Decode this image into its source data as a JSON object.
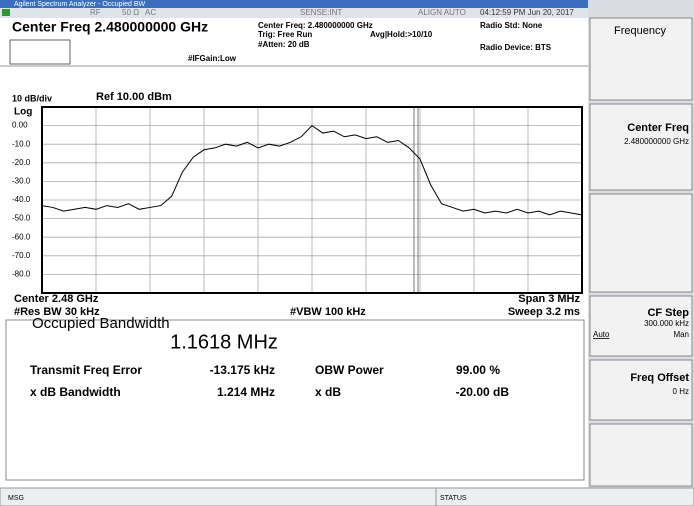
{
  "window_title": "Agilent Spectrum Analyzer - Occupied BW",
  "status_top": {
    "rf": "RF",
    "impedance": "50 Ω",
    "coupling": "AC",
    "sense": "SENSE:INT",
    "align": "ALIGN AUTO",
    "datetime": "04:12:59 PM Jun 20, 2017"
  },
  "header": {
    "center_freq": "Center Freq 2.480000000 GHz",
    "if_gain": "#IFGain:Low",
    "center_freq_detail": "Center Freq: 2.480000000 GHz",
    "trig": "Trig: Free Run",
    "avg_hold": "Avg|Hold:>10/10",
    "atten": "#Atten: 20 dB",
    "radio_std": "Radio Std: None",
    "radio_device": "Radio Device: BTS"
  },
  "chart_data": {
    "type": "line",
    "scale_label": "10 dB/div",
    "ref_label": "Ref 10.00 dBm",
    "scale_type": "Log",
    "center_label": "Center 2.48 GHz",
    "span_label": "Span 3 MHz",
    "rbw_label": "#Res BW 30 kHz",
    "vbw_label": "#VBW 100 kHz",
    "sweep_label": "Sweep 3.2 ms",
    "color": "#000000",
    "grid": true,
    "xlim": [
      2478.5,
      2481.5
    ],
    "ylim": [
      -90,
      10
    ],
    "yticks": [
      {
        "value": 0,
        "label": "0.00"
      },
      {
        "value": -10,
        "label": "-10.0"
      },
      {
        "value": -20,
        "label": "-20.0"
      },
      {
        "value": -30,
        "label": "-30.0"
      },
      {
        "value": -40,
        "label": "-40.0"
      },
      {
        "value": -50,
        "label": "-50.0"
      },
      {
        "value": -60,
        "label": "-60.0"
      },
      {
        "value": -70,
        "label": "-70.0"
      },
      {
        "value": -80,
        "label": "-80.0"
      }
    ],
    "x": [
      2478.5,
      2478.56,
      2478.62,
      2478.68,
      2478.74,
      2478.8,
      2478.86,
      2478.92,
      2478.98,
      2479.04,
      2479.1,
      2479.16,
      2479.22,
      2479.28,
      2479.34,
      2479.4,
      2479.46,
      2479.52,
      2479.58,
      2479.64,
      2479.7,
      2479.76,
      2479.82,
      2479.88,
      2479.94,
      2480,
      2480.06,
      2480.12,
      2480.18,
      2480.24,
      2480.3,
      2480.36,
      2480.42,
      2480.48,
      2480.54,
      2480.6,
      2480.66,
      2480.72,
      2480.78,
      2480.84,
      2480.9,
      2480.96,
      2481.02,
      2481.08,
      2481.14,
      2481.2,
      2481.26,
      2481.32,
      2481.38,
      2481.44,
      2481.5
    ],
    "values": [
      -43,
      -44,
      -46,
      -45,
      -44,
      -45,
      -43,
      -44,
      -42,
      -45,
      -44,
      -43,
      -38,
      -25,
      -17,
      -13,
      -12,
      -10,
      -11,
      -9,
      -12,
      -10,
      -11,
      -9,
      -6,
      0,
      -4,
      -3,
      -6,
      -5,
      -7,
      -6,
      -9,
      -8,
      -12,
      -18,
      -32,
      -42,
      -44,
      -46,
      -45,
      -47,
      -46,
      -47,
      -45,
      -47,
      -46,
      -48,
      -46,
      -47,
      -48
    ]
  },
  "results": {
    "title": "Occupied Bandwidth",
    "obw": "1.1618 MHz",
    "rows": [
      [
        "Transmit Freq Error",
        "-13.175 kHz",
        "OBW Power",
        "99.00 %"
      ],
      [
        "x dB Bandwidth",
        "1.214 MHz",
        "x dB",
        "-20.00 dB"
      ]
    ]
  },
  "softkeys": {
    "menu": "Frequency",
    "keys": [
      {
        "label": "Center Freq",
        "value": "2.480000000 GHz"
      },
      {
        "label": "CF Step",
        "value": "300.000 kHz",
        "options": [
          "Auto",
          "Man"
        ]
      },
      {
        "label": "Freq Offset",
        "value": "0 Hz"
      }
    ]
  },
  "status_bottom": {
    "msg": "MSG",
    "status": "STATUS"
  }
}
